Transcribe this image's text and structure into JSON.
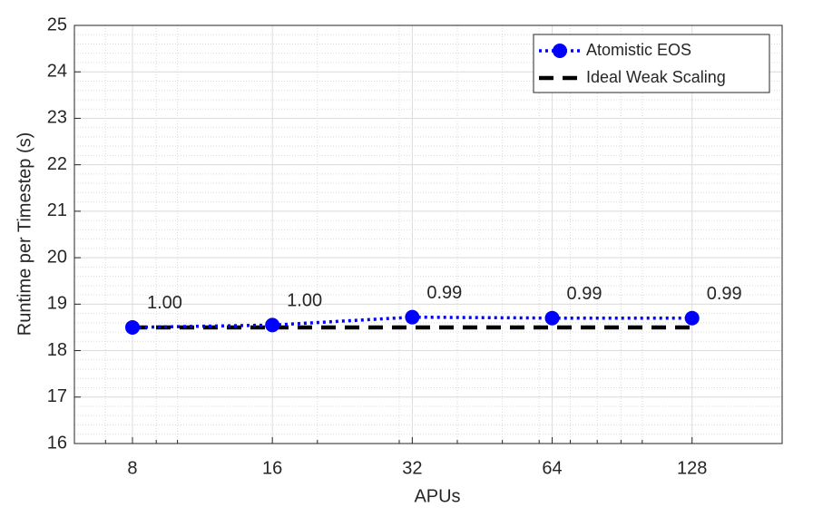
{
  "chart_data": {
    "type": "line",
    "xlabel": "APUs",
    "ylabel": "Runtime per Timestep (s)",
    "x": [
      8,
      16,
      32,
      64,
      128
    ],
    "xscale": "log",
    "xlim": [
      6,
      200
    ],
    "xticks": [
      8,
      16,
      32,
      64,
      128
    ],
    "xminorticks": [
      7,
      9,
      10,
      20,
      30,
      40,
      50,
      60,
      70,
      80,
      90,
      100,
      200
    ],
    "ylim": [
      16,
      25
    ],
    "yticks": [
      16,
      17,
      18,
      19,
      20,
      21,
      22,
      23,
      24,
      25
    ],
    "yminor_step": 0.2,
    "grid": true,
    "legend": "northeast",
    "series": [
      {
        "name": "Atomistic EOS",
        "color": "#0000ff",
        "style": "dotted",
        "marker": "circle",
        "values": [
          18.5,
          18.55,
          18.72,
          18.7,
          18.7
        ],
        "point_labels": [
          "1.00",
          "1.00",
          "0.99",
          "0.99",
          "0.99"
        ]
      },
      {
        "name": "Ideal Weak Scaling",
        "color": "#000000",
        "style": "dashed",
        "values": [
          18.5,
          18.5,
          18.5,
          18.5,
          18.5
        ]
      }
    ]
  }
}
